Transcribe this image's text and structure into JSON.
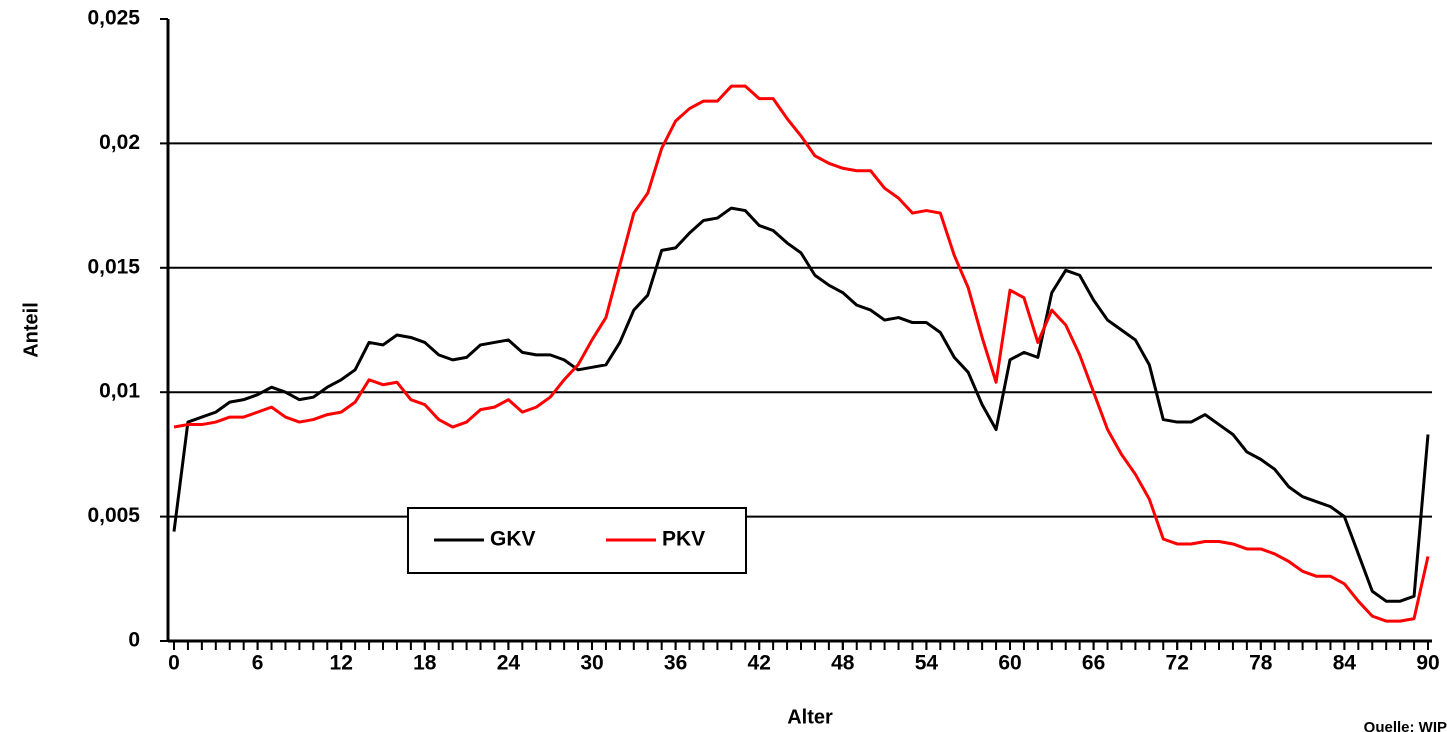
{
  "chart_data": {
    "type": "line",
    "x_label": "Alter",
    "y_label": "Anteil",
    "source": "Quelle: WIP",
    "x": [
      0,
      1,
      2,
      3,
      4,
      5,
      6,
      7,
      8,
      9,
      10,
      11,
      12,
      13,
      14,
      15,
      16,
      17,
      18,
      19,
      20,
      21,
      22,
      23,
      24,
      25,
      26,
      27,
      28,
      29,
      30,
      31,
      32,
      33,
      34,
      35,
      36,
      37,
      38,
      39,
      40,
      41,
      42,
      43,
      44,
      45,
      46,
      47,
      48,
      49,
      50,
      51,
      52,
      53,
      54,
      55,
      56,
      57,
      58,
      59,
      60,
      61,
      62,
      63,
      64,
      65,
      66,
      67,
      68,
      69,
      70,
      71,
      72,
      73,
      74,
      75,
      76,
      77,
      78,
      79,
      80,
      81,
      82,
      83,
      84,
      85,
      86,
      87,
      88,
      89,
      90
    ],
    "series": [
      {
        "name": "GKV",
        "color": "#000000",
        "values": [
          0.0044,
          0.0088,
          0.009,
          0.0092,
          0.0096,
          0.0097,
          0.0099,
          0.0102,
          0.01,
          0.0097,
          0.0098,
          0.0102,
          0.0105,
          0.0109,
          0.012,
          0.0119,
          0.0123,
          0.0122,
          0.012,
          0.0115,
          0.0113,
          0.0114,
          0.0119,
          0.012,
          0.0121,
          0.0116,
          0.0115,
          0.0115,
          0.0113,
          0.0109,
          0.011,
          0.0111,
          0.012,
          0.0133,
          0.0139,
          0.0157,
          0.0158,
          0.0164,
          0.0169,
          0.017,
          0.0174,
          0.0173,
          0.0167,
          0.0165,
          0.016,
          0.0156,
          0.0147,
          0.0143,
          0.014,
          0.0135,
          0.0133,
          0.0129,
          0.013,
          0.0128,
          0.0128,
          0.0124,
          0.0114,
          0.0108,
          0.0095,
          0.0085,
          0.0113,
          0.0116,
          0.0114,
          0.014,
          0.0149,
          0.0147,
          0.0137,
          0.0129,
          0.0125,
          0.0121,
          0.0111,
          0.0089,
          0.0088,
          0.0088,
          0.0091,
          0.0087,
          0.0083,
          0.0076,
          0.0073,
          0.0069,
          0.0062,
          0.0058,
          0.0056,
          0.0054,
          0.005,
          0.0035,
          0.002,
          0.0016,
          0.0016,
          0.0018,
          0.0083
        ]
      },
      {
        "name": "PKV",
        "color": "#ff0000",
        "values": [
          0.0086,
          0.0087,
          0.0087,
          0.0088,
          0.009,
          0.009,
          0.0092,
          0.0094,
          0.009,
          0.0088,
          0.0089,
          0.0091,
          0.0092,
          0.0096,
          0.0105,
          0.0103,
          0.0104,
          0.0097,
          0.0095,
          0.0089,
          0.0086,
          0.0088,
          0.0093,
          0.0094,
          0.0097,
          0.0092,
          0.0094,
          0.0098,
          0.0105,
          0.0111,
          0.0121,
          0.013,
          0.0151,
          0.0172,
          0.018,
          0.0198,
          0.0209,
          0.0214,
          0.0217,
          0.0217,
          0.0223,
          0.0223,
          0.0218,
          0.0218,
          0.021,
          0.0203,
          0.0195,
          0.0192,
          0.019,
          0.0189,
          0.0189,
          0.0182,
          0.0178,
          0.0172,
          0.0173,
          0.0172,
          0.0155,
          0.0142,
          0.0122,
          0.0104,
          0.0141,
          0.0138,
          0.012,
          0.0133,
          0.0127,
          0.0115,
          0.01,
          0.0085,
          0.0075,
          0.0067,
          0.0057,
          0.0041,
          0.0039,
          0.0039,
          0.004,
          0.004,
          0.0039,
          0.0037,
          0.0037,
          0.0035,
          0.0032,
          0.0028,
          0.0026,
          0.0026,
          0.0023,
          0.0016,
          0.001,
          0.0008,
          0.0008,
          0.0009,
          0.0034
        ]
      }
    ],
    "xlim": [
      0,
      90
    ],
    "xticks": [
      0,
      6,
      12,
      18,
      24,
      30,
      36,
      42,
      48,
      54,
      60,
      66,
      72,
      78,
      84,
      90
    ],
    "ylim": [
      0,
      0.025
    ],
    "yticks": [
      0,
      {
        "value": 0.005,
        "label": "0,005"
      },
      {
        "value": 0.01,
        "label": "0,01"
      },
      {
        "value": 0.015,
        "label": "0,015"
      },
      {
        "value": 0.02,
        "label": "0,02"
      },
      {
        "value": 0.025,
        "label": "0,025"
      }
    ],
    "grid": true,
    "legend": "lower left"
  }
}
